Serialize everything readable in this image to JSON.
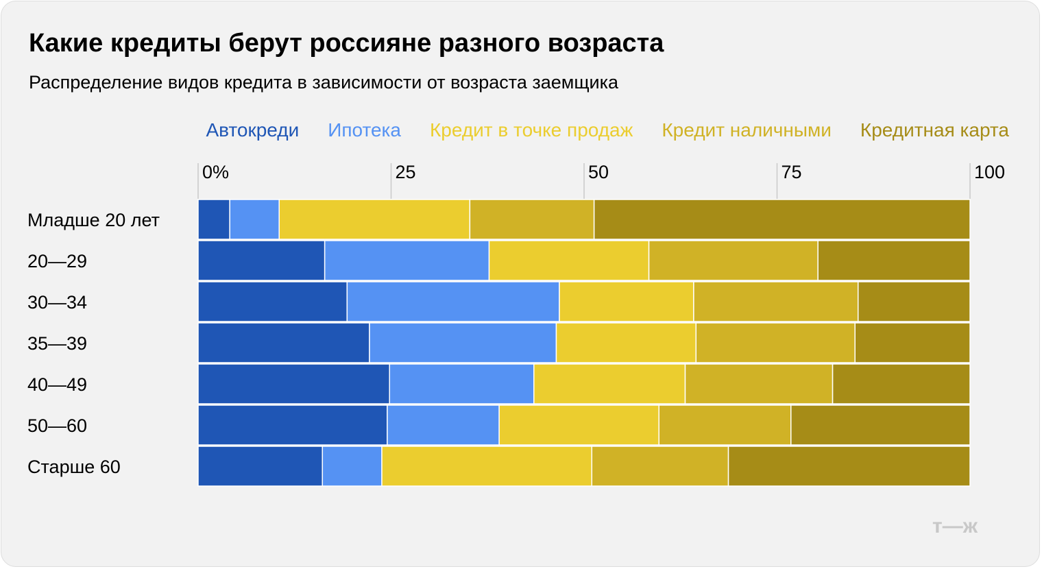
{
  "title": "Какие кредиты берут россияне разного возраста",
  "subtitle": "Распределение видов кредита в зависимости от возраста заемщика",
  "logo_text": "т—ж",
  "chart_data": {
    "type": "bar",
    "orientation": "horizontal",
    "stacked": true,
    "xlim": [
      0,
      100
    ],
    "xticks": [
      "0%",
      "25",
      "50",
      "75",
      "100"
    ],
    "xtick_values": [
      0,
      25,
      50,
      75,
      100
    ],
    "categories": [
      "Младше 20 лет",
      "20—29",
      "30—34",
      "35—39",
      "40—49",
      "50—60",
      "Старше 60"
    ],
    "series": [
      {
        "name": "Автокреди",
        "color": "#1f56b5",
        "values": [
          4.1,
          16.4,
          19.3,
          22.2,
          24.8,
          24.5,
          16.1
        ]
      },
      {
        "name": "Ипотека",
        "color": "#5592f3",
        "values": [
          6.4,
          21.3,
          27.5,
          24.2,
          18.7,
          14.5,
          7.7
        ]
      },
      {
        "name": "Кредит в точке продаж",
        "color": "#ebcd2f",
        "values": [
          24.7,
          20.7,
          17.4,
          18.1,
          19.6,
          20.7,
          27.2
        ]
      },
      {
        "name": "Кредит наличными",
        "color": "#d0b226",
        "values": [
          16.1,
          21.9,
          21.3,
          20.6,
          19.1,
          17.1,
          17.7
        ]
      },
      {
        "name": "Кредитная карта",
        "color": "#a68c17",
        "values": [
          48.7,
          19.7,
          14.5,
          14.9,
          17.8,
          23.2,
          31.3
        ]
      }
    ]
  }
}
